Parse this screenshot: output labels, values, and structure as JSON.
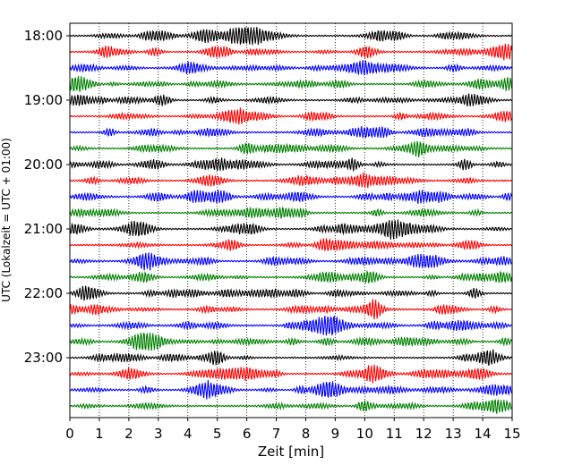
{
  "chart_data": {
    "type": "line",
    "title": "",
    "xlabel": "Zeit  [min]",
    "ylabel": "UTC (Lokalzeit = UTC + 01:00)",
    "xlim": [
      0,
      15
    ],
    "x_ticks": [
      "0",
      "1",
      "2",
      "3",
      "4",
      "5",
      "6",
      "7",
      "8",
      "9",
      "10",
      "11",
      "12",
      "13",
      "14",
      "15"
    ],
    "y_ticks": [
      "18:00",
      "19:00",
      "20:00",
      "21:00",
      "22:00",
      "23:00"
    ],
    "grid": "vertical dotted",
    "trace_interval_min": 15,
    "trace_count": 24,
    "trace_colors": [
      "#000000",
      "#ff0000",
      "#0000ff",
      "#008000"
    ],
    "start_time": "18:00"
  }
}
